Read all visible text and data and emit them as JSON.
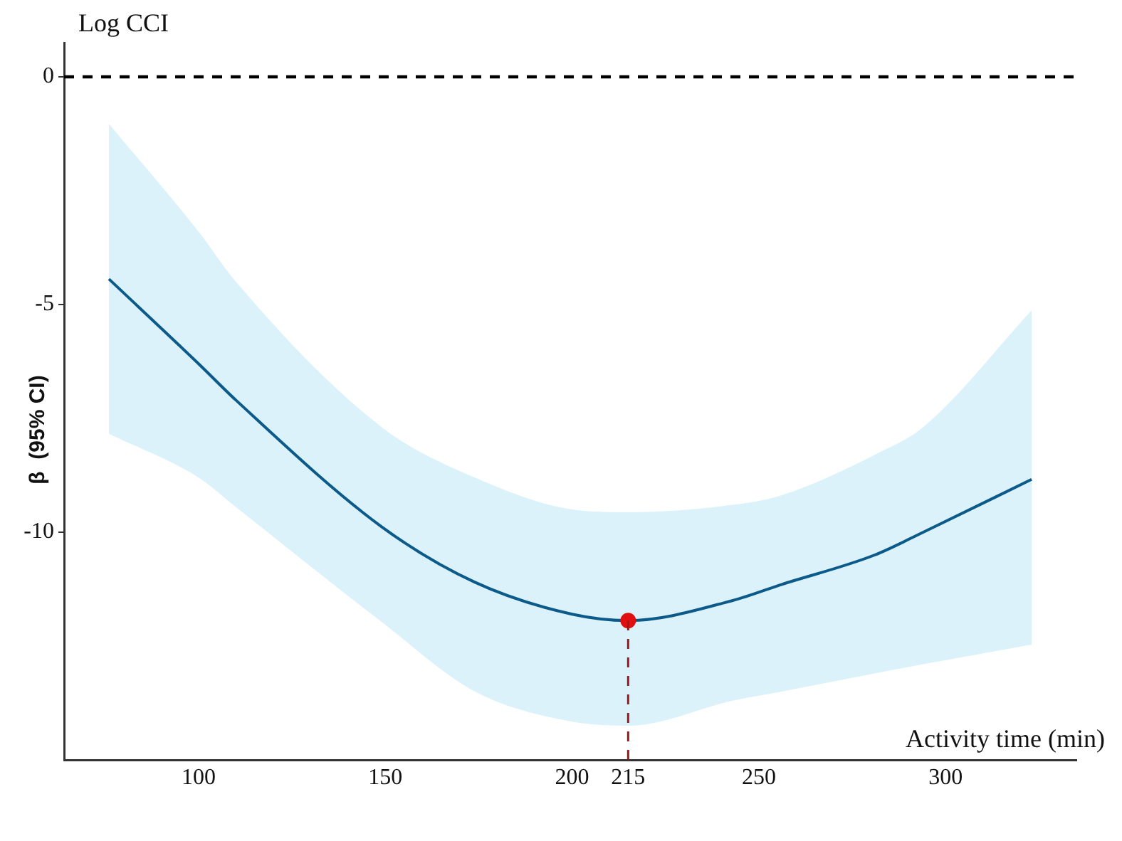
{
  "chart_data": {
    "type": "line",
    "title": "Log CCI",
    "xlabel": "Activity time (min)",
    "ylabel": "β  (95% CI)",
    "xlim": [
      64,
      335
    ],
    "ylim": [
      -15,
      0.75
    ],
    "xticks": [
      100,
      150,
      200,
      215,
      250,
      300
    ],
    "yticks": [
      0,
      -5,
      -10
    ],
    "grid": false,
    "legend": false,
    "marker": "none",
    "line_style": "solid",
    "series": [
      {
        "color": "#0b5a8a",
        "x": [
          76,
          100,
          110,
          149,
          174,
          200,
          215,
          243,
          256,
          281,
          294,
          323
        ],
        "values": [
          -4.44,
          -6.3,
          -7.1,
          -9.88,
          -11.1,
          -11.8,
          -11.94,
          -11.5,
          -11.15,
          -10.5,
          -10.0,
          -8.84
        ],
        "upper": [
          -1.03,
          -3.4,
          -4.5,
          -7.69,
          -8.8,
          -9.5,
          -9.56,
          -9.4,
          -9.19,
          -8.3,
          -7.69,
          -5.13
        ],
        "lower": [
          -7.84,
          -8.8,
          -9.45,
          -11.97,
          -13.5,
          -14.16,
          -14.25,
          -13.7,
          -13.5,
          -13.1,
          -12.9,
          -12.47
        ]
      },
      {
        "type": "scatter",
        "color": "#e01010",
        "x": [
          215
        ],
        "values": [
          -11.94
        ],
        "marker": "circle"
      }
    ],
    "ref_lines": [
      {
        "axis": "y",
        "value": 0,
        "color": "#000000",
        "line_style": "dashed"
      },
      {
        "axis": "x",
        "value": 215,
        "color": "#a01818",
        "line_style": "dashed"
      }
    ]
  }
}
